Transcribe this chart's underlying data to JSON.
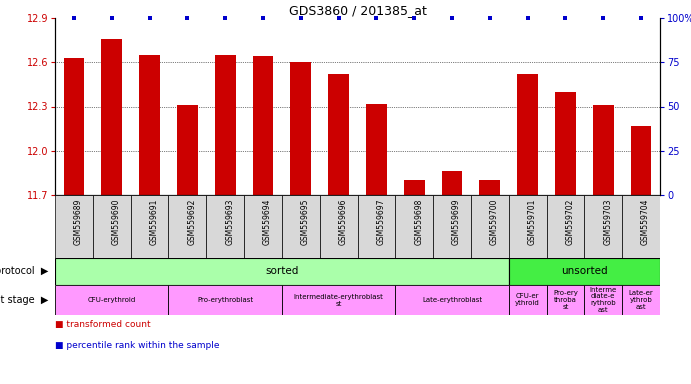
{
  "title": "GDS3860 / 201385_at",
  "samples": [
    "GSM559689",
    "GSM559690",
    "GSM559691",
    "GSM559692",
    "GSM559693",
    "GSM559694",
    "GSM559695",
    "GSM559696",
    "GSM559697",
    "GSM559698",
    "GSM559699",
    "GSM559700",
    "GSM559701",
    "GSM559702",
    "GSM559703",
    "GSM559704"
  ],
  "bar_values": [
    12.63,
    12.76,
    12.65,
    12.31,
    12.65,
    12.64,
    12.6,
    12.52,
    12.32,
    11.8,
    11.86,
    11.8,
    12.52,
    12.4,
    12.31,
    12.17
  ],
  "percentile_values": [
    100,
    100,
    100,
    100,
    100,
    100,
    100,
    100,
    100,
    100,
    100,
    100,
    100,
    100,
    100,
    100
  ],
  "ylim_left": [
    11.7,
    12.9
  ],
  "ylim_right": [
    0,
    100
  ],
  "yticks_left": [
    11.7,
    12.0,
    12.3,
    12.6,
    12.9
  ],
  "yticks_right": [
    0,
    25,
    50,
    75,
    100
  ],
  "bar_color": "#cc0000",
  "percentile_color": "#0000cc",
  "protocol_sorted_span": [
    0,
    11
  ],
  "protocol_unsorted_span": [
    12,
    15
  ],
  "protocol_sorted_color": "#aaffaa",
  "protocol_unsorted_color": "#44ee44",
  "dev_stages": [
    {
      "label": "CFU-erythroid",
      "start": 0,
      "end": 2,
      "color": "#ff99ff"
    },
    {
      "label": "Pro-erythroblast",
      "start": 3,
      "end": 5,
      "color": "#ff99ff"
    },
    {
      "label": "Intermediate-erythroblast\nst",
      "start": 6,
      "end": 8,
      "color": "#ff99ff"
    },
    {
      "label": "Late-erythroblast",
      "start": 9,
      "end": 11,
      "color": "#ff99ff"
    },
    {
      "label": "CFU-er\nythroid",
      "start": 12,
      "end": 12,
      "color": "#ff99ff"
    },
    {
      "label": "Pro-ery\nthroba\nst",
      "start": 13,
      "end": 13,
      "color": "#ff99ff"
    },
    {
      "label": "Interme\ndiate-e\nrythrob\nast",
      "start": 14,
      "end": 14,
      "color": "#ff99ff"
    },
    {
      "label": "Late-er\nythrob\nast",
      "start": 15,
      "end": 15,
      "color": "#ff99ff"
    }
  ],
  "legend_items": [
    {
      "label": "transformed count",
      "color": "#cc0000"
    },
    {
      "label": "percentile rank within the sample",
      "color": "#0000cc"
    }
  ],
  "background_color": "#ffffff",
  "tick_label_color_left": "#cc0000",
  "tick_label_color_right": "#0000cc",
  "xticklabel_bg": "#d8d8d8"
}
